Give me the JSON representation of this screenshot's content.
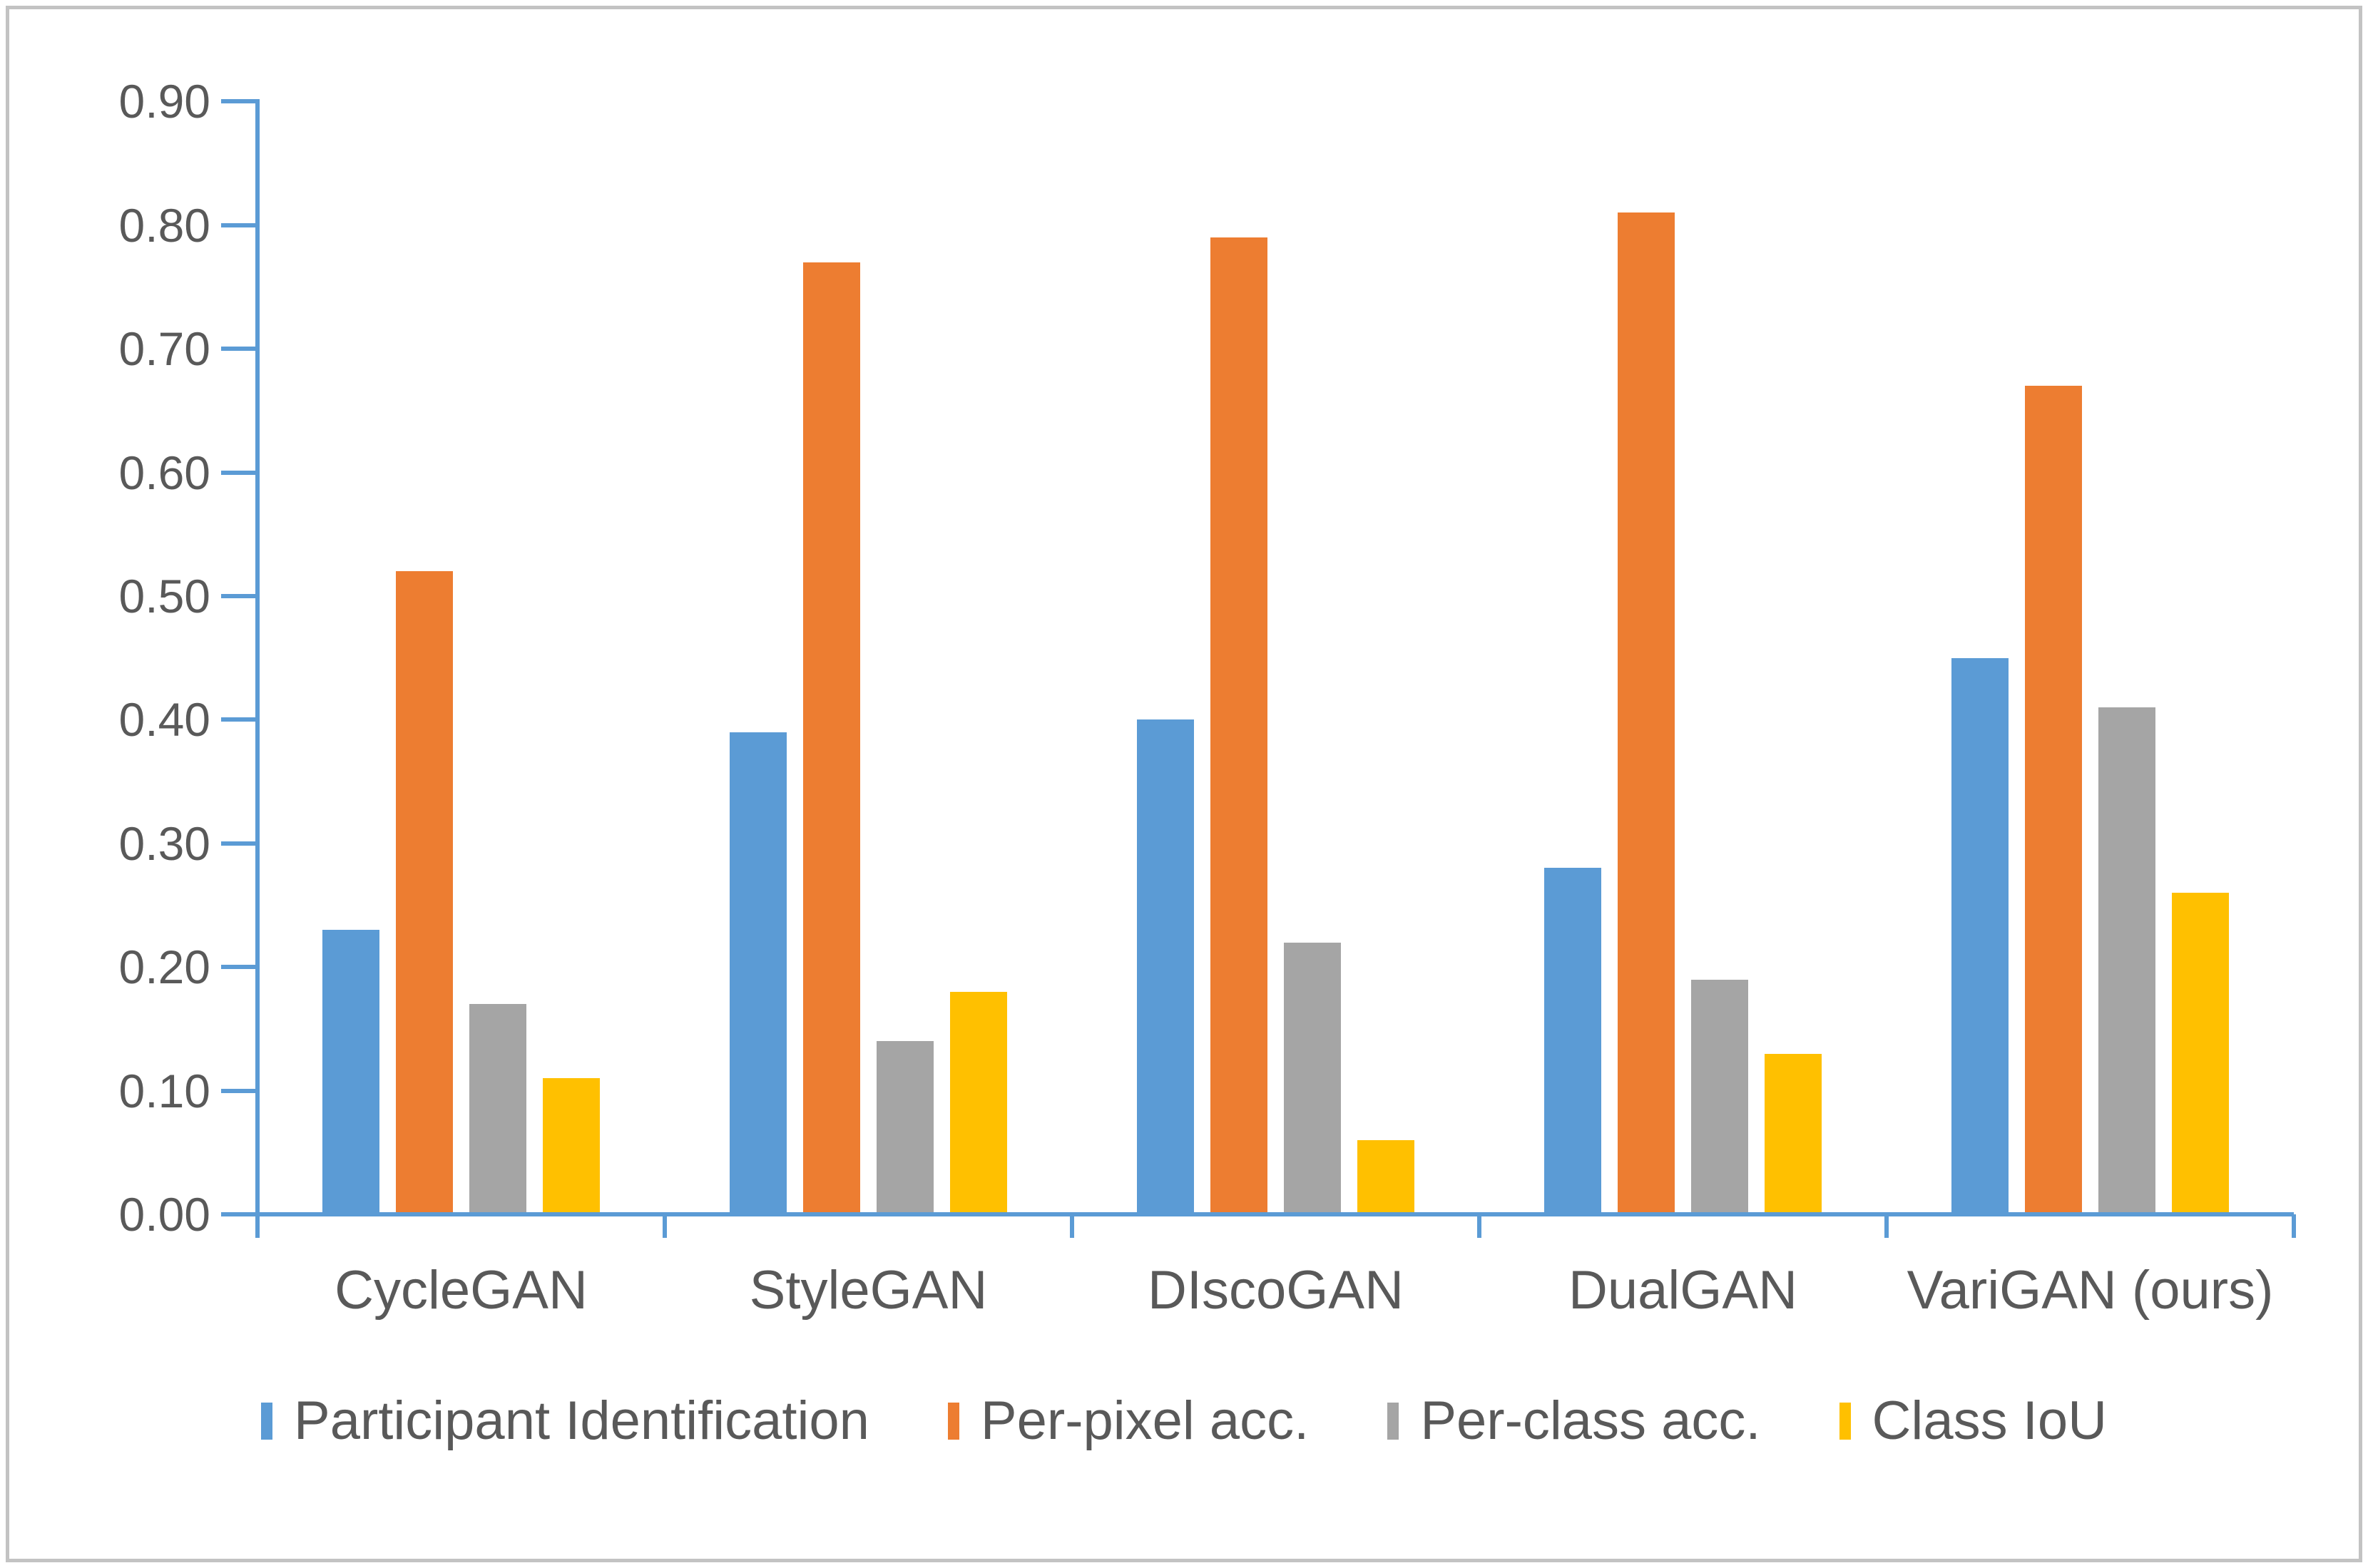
{
  "chart_data": {
    "type": "bar",
    "title": "",
    "xlabel": "",
    "ylabel": "",
    "categories": [
      "CycleGAN",
      "StyleGAN",
      "DIscoGAN",
      "DualGAN",
      "VariGAN (ours)"
    ],
    "series": [
      {
        "name": "Participant Identification",
        "color": "#5B9BD5",
        "values": [
          0.23,
          0.39,
          0.4,
          0.28,
          0.45
        ]
      },
      {
        "name": "Per-pixel acc.",
        "color": "#ED7D31",
        "values": [
          0.52,
          0.77,
          0.79,
          0.81,
          0.67
        ]
      },
      {
        "name": "Per-class acc.",
        "color": "#A5A5A5",
        "values": [
          0.17,
          0.14,
          0.22,
          0.19,
          0.41
        ]
      },
      {
        "name": "Class IoU",
        "color": "#FFC000",
        "values": [
          0.11,
          0.18,
          0.06,
          0.13,
          0.26
        ]
      }
    ],
    "ylim": [
      0,
      0.9
    ],
    "ytick_step": 0.1,
    "ytick_labels": [
      "0.00",
      "0.10",
      "0.20",
      "0.30",
      "0.40",
      "0.50",
      "0.60",
      "0.70",
      "0.80",
      "0.90"
    ],
    "grid": false,
    "legend_position": "bottom",
    "axis_color": "#5B9BD5",
    "text_color": "#595959",
    "background_color": "#FFFFFF",
    "frame_color": "#C3C3C3"
  }
}
